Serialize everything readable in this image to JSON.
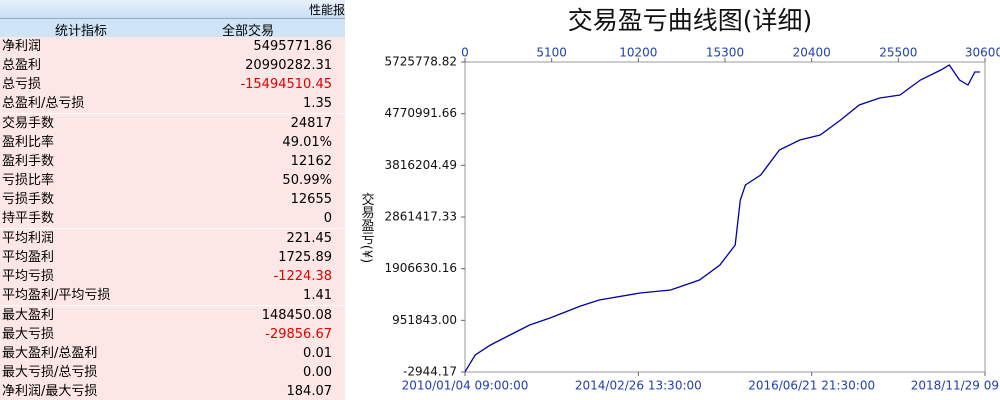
{
  "table": {
    "banner": "性能报",
    "header": [
      "统计指标",
      "全部交易"
    ],
    "sections": [
      [
        [
          "净利润",
          "5495771.86"
        ],
        [
          "总盈利",
          "20990282.31"
        ],
        [
          "总亏损",
          "-15494510.45"
        ],
        [
          "总盈利/总亏损",
          "1.35"
        ]
      ],
      [
        [
          "交易手数",
          "24817"
        ],
        [
          "盈利比率",
          "49.01%"
        ],
        [
          "盈利手数",
          "12162"
        ],
        [
          "亏损比率",
          "50.99%"
        ],
        [
          "亏损手数",
          "12655"
        ],
        [
          "持平手数",
          "0"
        ]
      ],
      [
        [
          "平均利润",
          "221.45"
        ],
        [
          "平均盈利",
          "1725.89"
        ],
        [
          "平均亏损",
          "-1224.38"
        ],
        [
          "平均盈利/平均亏损",
          "1.41"
        ]
      ],
      [
        [
          "最大盈利",
          "148450.08"
        ],
        [
          "最大亏损",
          "-29856.67"
        ],
        [
          "最大盈利/总盈利",
          "0.01"
        ],
        [
          "最大亏损/总亏损",
          "0.00"
        ],
        [
          "净利润/最大亏损",
          "184.07"
        ]
      ]
    ]
  },
  "chart_data": {
    "type": "line",
    "title": "交易盈亏曲线图(详细)",
    "y_label": "交易盈亏(¥)",
    "x": [
      0,
      600,
      1500,
      2650,
      3800,
      5000,
      6800,
      7900,
      10300,
      12100,
      13800,
      15000,
      15900,
      16200,
      16500,
      17400,
      18500,
      19700,
      20900,
      22100,
      23200,
      24400,
      25600,
      26800,
      28000,
      28500,
      29100,
      29600,
      30000,
      30300
    ],
    "series": [
      {
        "color": "#0000a8",
        "values": [
          0,
          311000,
          496000,
          681000,
          866000,
          995000,
          1217000,
          1328000,
          1457000,
          1512000,
          1697000,
          1974000,
          2344000,
          3176000,
          3453000,
          3638000,
          4100000,
          4284000,
          4377000,
          4654000,
          4931000,
          5061000,
          5116000,
          5393000,
          5578000,
          5670000,
          5393000,
          5301000,
          5541000,
          5541000
        ]
      }
    ],
    "xlim": [
      0,
      30600
    ],
    "xticks": [
      0,
      5100,
      10200,
      15300,
      20400,
      25500,
      30600
    ],
    "x2ticks": [
      {
        "value": 0,
        "label": "2010/01/04 09:00:00"
      },
      {
        "value": 10200,
        "label": "2014/02/26 13:30:00"
      },
      {
        "value": 20400,
        "label": "2016/06/21 21:30:00"
      },
      {
        "value": 30600,
        "label": "2018/11/29 09"
      }
    ],
    "ylim": [
      -2944.17,
      5725778.82
    ],
    "yticks": [
      -2944.17,
      {
        "value": 951843,
        "label": "951843.00"
      },
      1906630.16,
      2861417.33,
      3816204.49,
      4770991.66,
      5725778.82
    ]
  }
}
